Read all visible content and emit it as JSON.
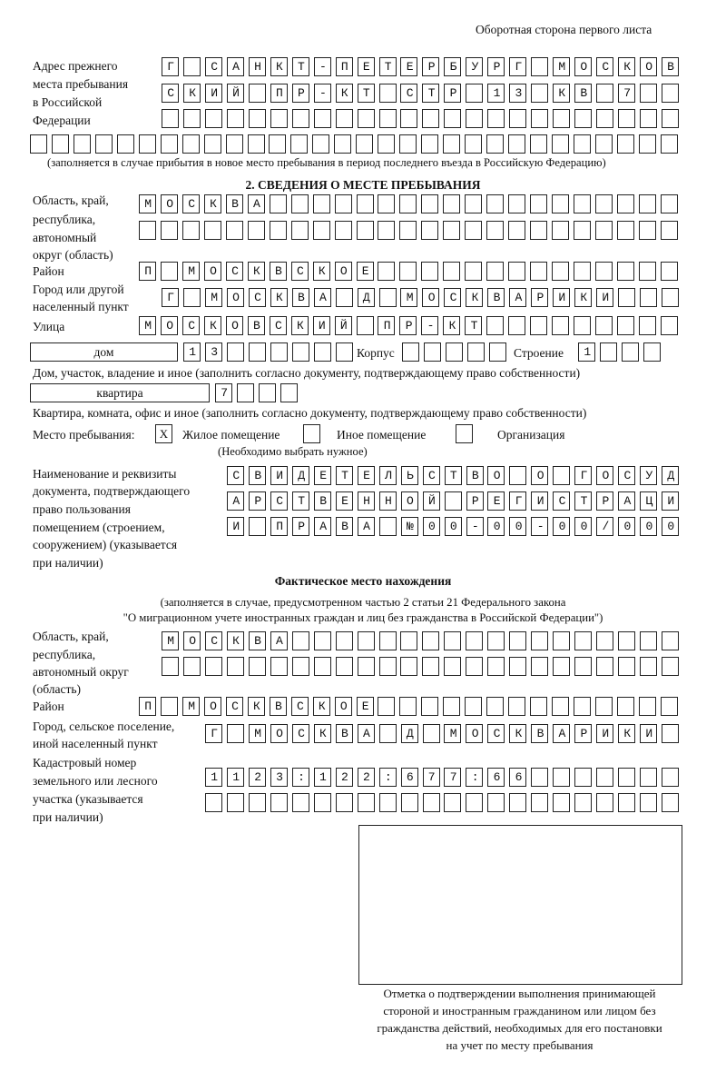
{
  "page_header": "Оборотная сторона первого листа",
  "prev_address": {
    "label": [
      "Адрес прежнего",
      "места пребывания",
      "в Российской",
      "Федерации"
    ],
    "rows": [
      "Г САНКТ-ПЕТЕРБУРГ МОСКОВ",
      "СКИЙ ПР-КТ СТР 13 КВ 7",
      "",
      ""
    ],
    "note": "(заполняется в случае прибытия в новое место пребывания в период последнего въезда в Российскую Федерацию)"
  },
  "section2": {
    "title": "2. СВЕДЕНИЯ О МЕСТЕ ПРЕБЫВАНИЯ",
    "region_label": [
      "Область, край,",
      "республика,",
      "автономный",
      "округ (область)"
    ],
    "region_rows": [
      "МОСКВА",
      ""
    ],
    "district_label": "Район",
    "district": "П МОСКВСКОЕ",
    "city_label": [
      "Город или другой",
      "населенный пункт"
    ],
    "city": "Г МОСКВА Д МОСКВАРИКИ",
    "street_label": "Улица",
    "street": "МОСКОВСКИЙ ПР-КТ",
    "house_type": "дом",
    "house_number": "13",
    "korpus_label": "Корпус",
    "korpus": "",
    "stroenie_label": "Строение",
    "stroenie": "1",
    "house_note": "Дом, участок, владение и иное (заполнить согласно документу, подтверждающему право собственности)",
    "apt_type": "квартира",
    "apt_number": "7",
    "apt_note": "Квартира, комната, офис и иное (заполнить согласно документу, подтверждающему право собственности)",
    "stay_place_label": "Место пребывания:",
    "stay_options": [
      {
        "label": "Жилое помещение",
        "mark": "X"
      },
      {
        "label": "Иное помещение",
        "mark": ""
      },
      {
        "label": "Организация",
        "mark": ""
      }
    ],
    "stay_hint": "(Необходимо выбрать нужное)",
    "doc_label": [
      "Наименование и реквизиты",
      "документа, подтверждающего",
      "право пользования",
      "помещением (строением,",
      "сооружением) (указывается",
      "при наличии)"
    ],
    "doc_rows": [
      "СВИДЕТЕЛЬСТВО О ГОСУД",
      "АРСТВЕННОЙ РЕГИСТРАЦИ",
      "И ПРАВА №00-00-00/000"
    ]
  },
  "actual": {
    "title": "Фактическое место нахождения",
    "note": [
      "(заполняется в случае, предусмотренном частью 2 статьи 21 Федерального закона",
      "\"О миграционном учете иностранных граждан и лиц без гражданства в Российской Федерации\")"
    ],
    "region_label": [
      "Область, край,",
      "республика,",
      "автономный округ",
      "(область)"
    ],
    "region_rows": [
      "МОСКВА",
      ""
    ],
    "district_label": "Район",
    "district": "П МОСКВСКОЕ",
    "city_label": [
      "Город, сельское поселение,",
      "иной населенный пункт"
    ],
    "city": "Г МОСКВА Д МОСКВАРИКИ",
    "cadastre_label": [
      "Кадастровый номер",
      "земельного или лесного",
      "участка (указывается",
      "при наличии)"
    ],
    "cadastre_rows": [
      "1123:122:677:66",
      ""
    ]
  },
  "confirmation": {
    "caption": [
      "Отметка о подтверждении выполнения принимающей",
      "стороной и иностранным гражданином или лицом без",
      "гражданства действий, необходимых для его постановки",
      "на учет по месту пребывания"
    ]
  }
}
